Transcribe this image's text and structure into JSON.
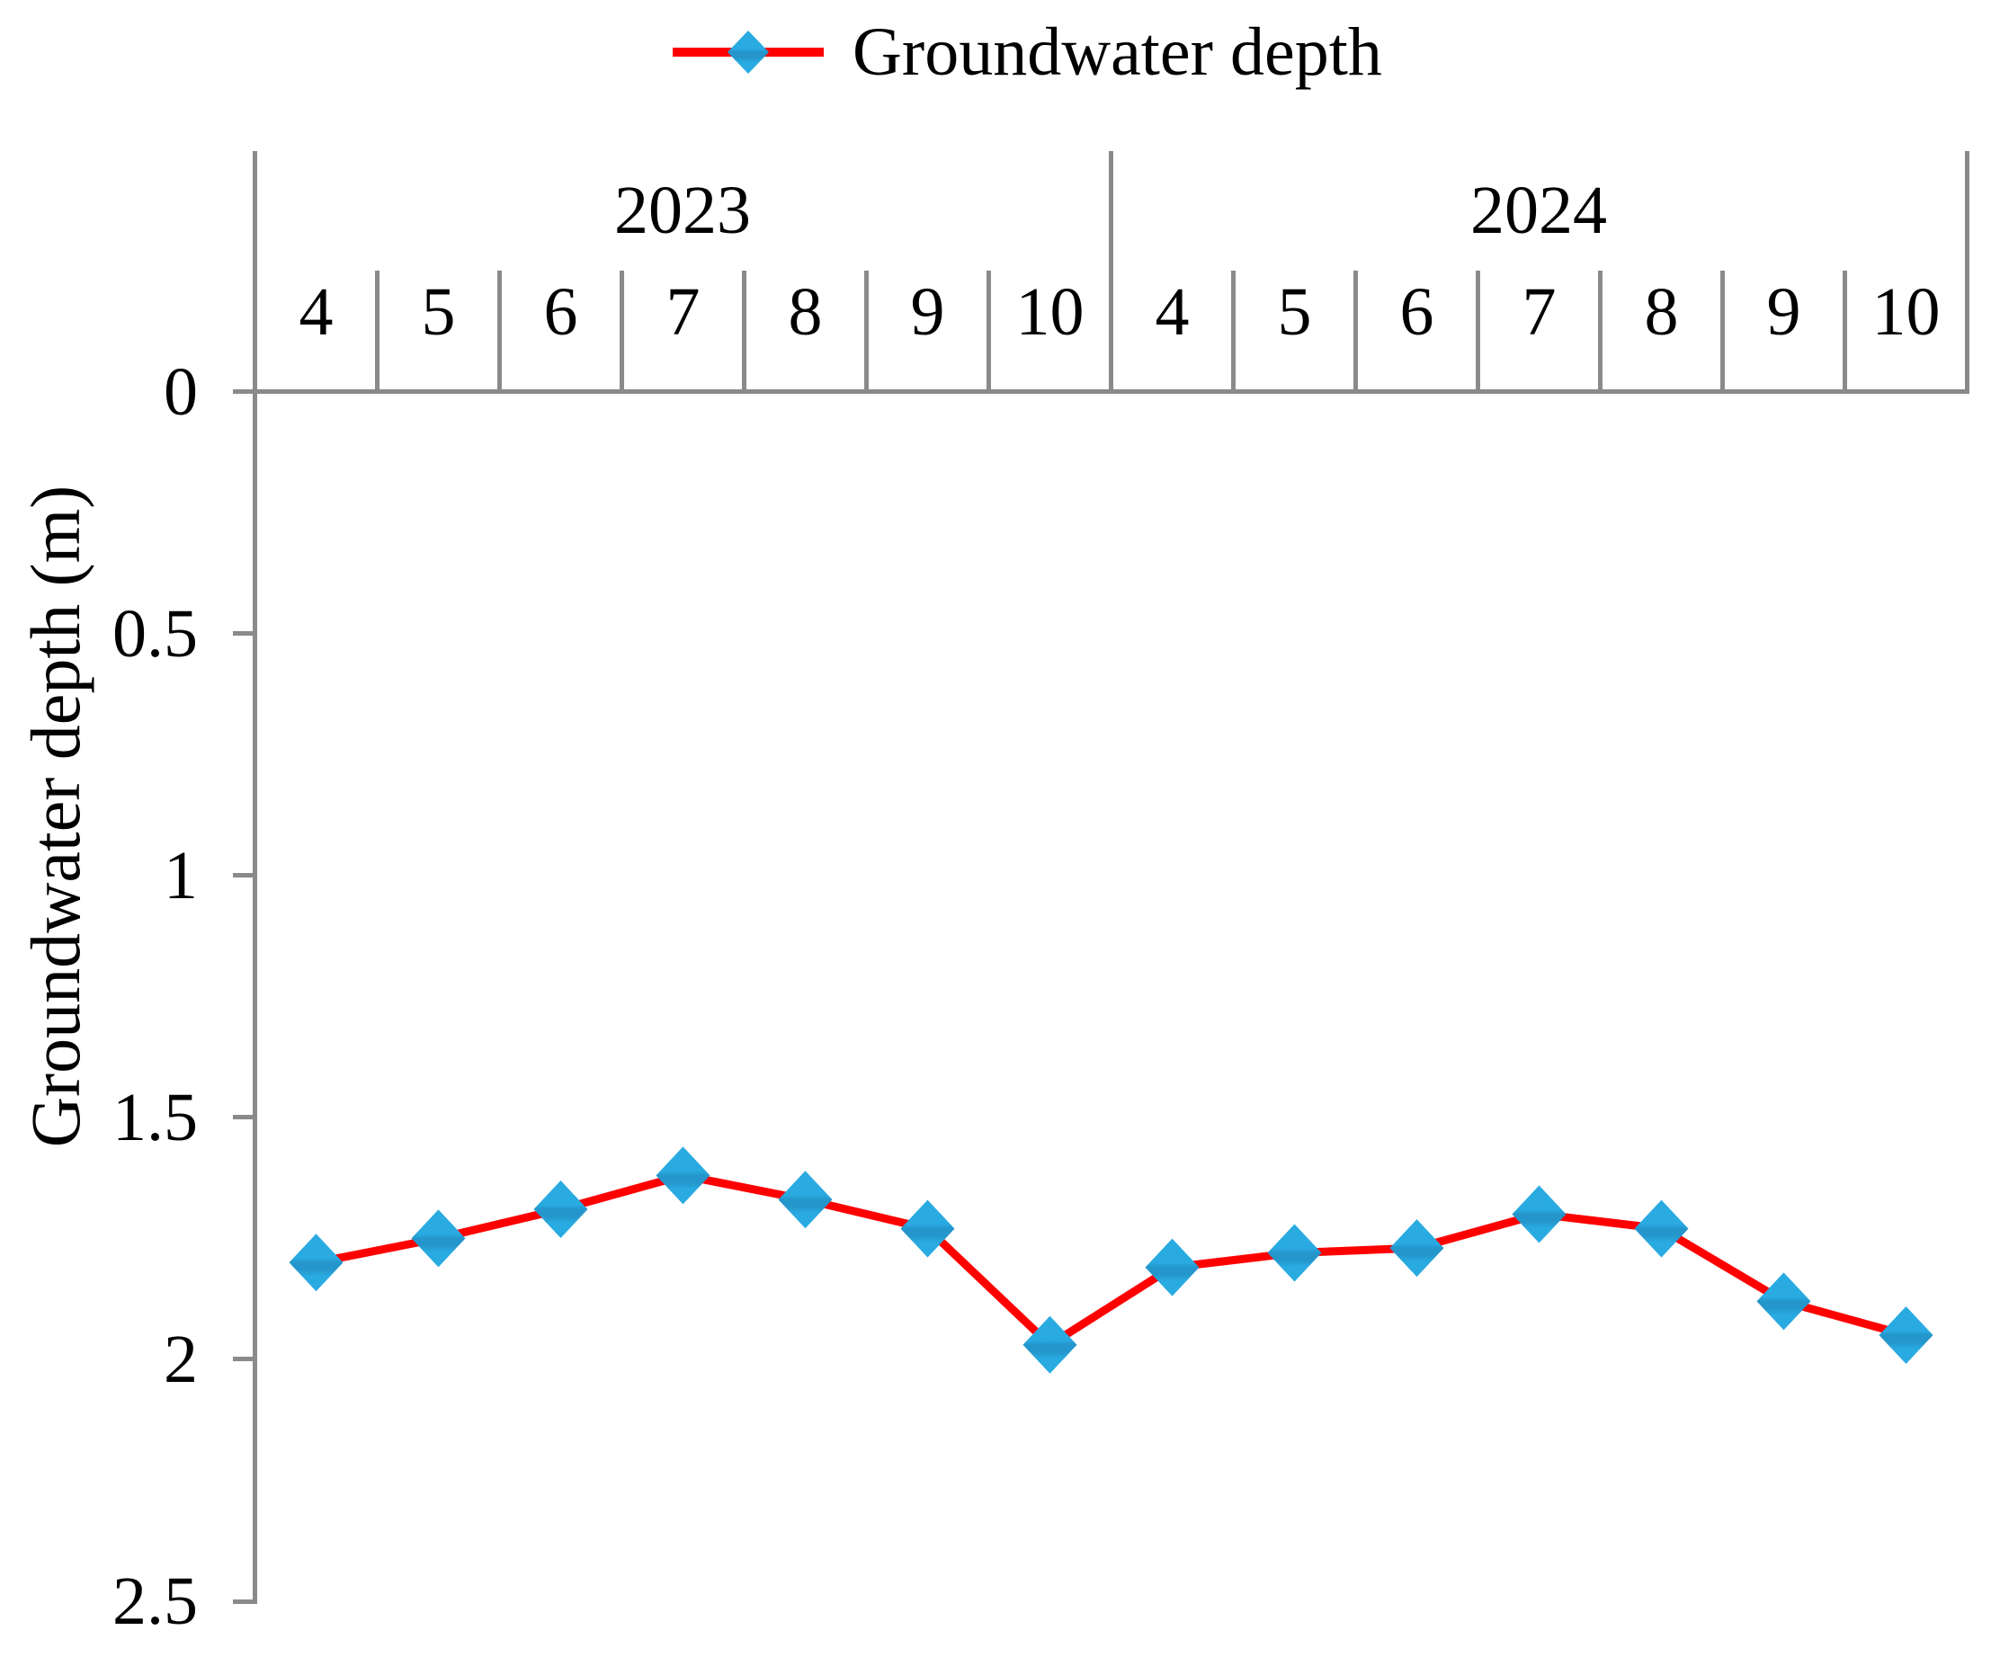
{
  "legend": {
    "label": "Groundwater depth"
  },
  "x_axis": {
    "groups": [
      {
        "year": "2023",
        "months": [
          "4",
          "5",
          "6",
          "7",
          "8",
          "9",
          "10"
        ]
      },
      {
        "year": "2024",
        "months": [
          "4",
          "5",
          "6",
          "7",
          "8",
          "9",
          "10"
        ]
      }
    ]
  },
  "y_axis": {
    "title": "Groundwater depth (m)",
    "tick_labels": [
      "0",
      "0.5",
      "1",
      "1.5",
      "2",
      "2.5"
    ],
    "tick_values": [
      0,
      0.5,
      1,
      1.5,
      2,
      2.5
    ],
    "min": 0,
    "max": 2.5,
    "inverted": true
  },
  "colors": {
    "line": "#fe0000",
    "marker": "#29abe2",
    "marker_shade": "#2496cb",
    "axis": "#8a8a8a",
    "text": "#000000",
    "background": "#ffffff"
  },
  "chart_data": {
    "type": "line",
    "title": "",
    "legend_entries": [
      "Groundwater depth"
    ],
    "legend_position": "top-center",
    "categories": [
      "2023-4",
      "2023-5",
      "2023-6",
      "2023-7",
      "2023-8",
      "2023-9",
      "2023-10",
      "2024-4",
      "2024-5",
      "2024-6",
      "2024-7",
      "2024-8",
      "2024-9",
      "2024-10"
    ],
    "category_groups": [
      {
        "label": "2023",
        "months": [
          "4",
          "5",
          "6",
          "7",
          "8",
          "9",
          "10"
        ]
      },
      {
        "label": "2024",
        "months": [
          "4",
          "5",
          "6",
          "7",
          "8",
          "9",
          "10"
        ]
      }
    ],
    "series": [
      {
        "name": "Groundwater depth",
        "marker": "diamond",
        "values": [
          1.8,
          1.75,
          1.69,
          1.62,
          1.67,
          1.73,
          1.97,
          1.81,
          1.78,
          1.77,
          1.7,
          1.73,
          1.88,
          1.95
        ]
      }
    ],
    "xlabel": "",
    "ylabel": "Groundwater depth (m)",
    "ylim": [
      0,
      2.5
    ],
    "y_axis_inverted": true,
    "yticks": [
      0,
      0.5,
      1,
      1.5,
      2,
      2.5
    ],
    "grid": false
  }
}
